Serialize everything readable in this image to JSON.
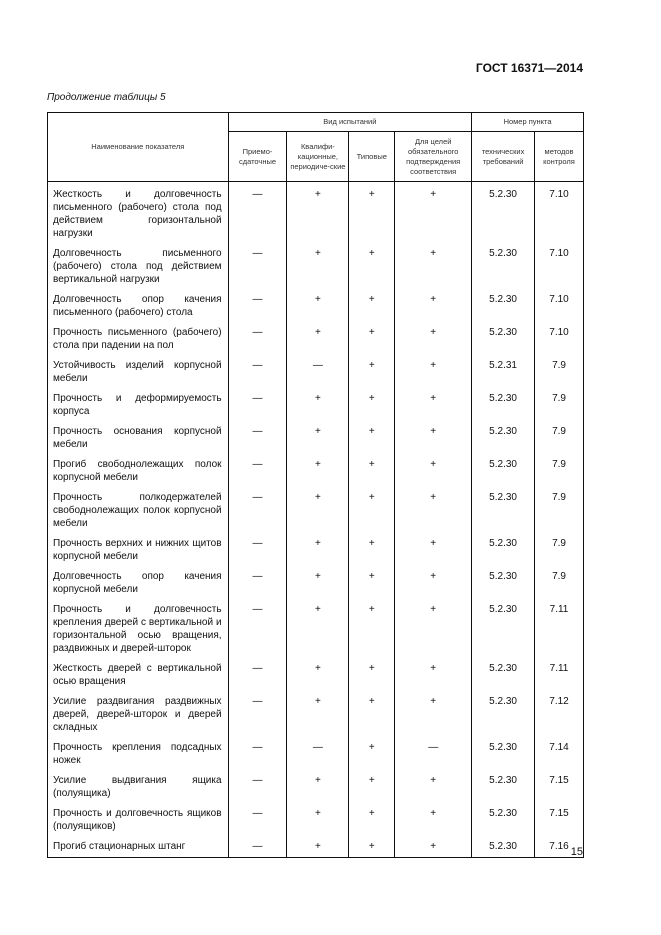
{
  "header": {
    "doc_code": "ГОСТ 16371—2014"
  },
  "caption": "Продолжение таблицы 5",
  "table": {
    "col_name": "Наименование показателя",
    "group_tests": "Вид испытаний",
    "group_clause": "Номер пункта",
    "cols": [
      "Приемо-сдаточные",
      "Квалифи-кационные, периодиче-ские",
      "Типовые",
      "Для целей обязательного подтверждения соответствия",
      "технических требований",
      "методов контроля"
    ],
    "rows": [
      [
        "Жесткость и долговечность письменного (рабочего) стола под действием горизонтальной нагрузки",
        "—",
        "+",
        "+",
        "+",
        "5.2.30",
        "7.10"
      ],
      [
        "Долговечность письменного (рабочего) стола под действием вертикальной нагрузки",
        "—",
        "+",
        "+",
        "+",
        "5.2.30",
        "7.10"
      ],
      [
        "Долговечность опор качения письменного (рабочего) стола",
        "—",
        "+",
        "+",
        "+",
        "5.2.30",
        "7.10"
      ],
      [
        "Прочность письменного (рабочего) стола при падении на пол",
        "—",
        "+",
        "+",
        "+",
        "5.2.30",
        "7.10"
      ],
      [
        "Устойчивость изделий корпусной мебели",
        "—",
        "—",
        "+",
        "+",
        "5.2.31",
        "7.9"
      ],
      [
        "Прочность и деформируемость корпуса",
        "—",
        "+",
        "+",
        "+",
        "5.2.30",
        "7.9"
      ],
      [
        "Прочность основания корпусной мебели",
        "—",
        "+",
        "+",
        "+",
        "5.2.30",
        "7.9"
      ],
      [
        "Прогиб свободнолежащих полок корпусной мебели",
        "—",
        "+",
        "+",
        "+",
        "5.2.30",
        "7.9"
      ],
      [
        "Прочность полкодержателей свободнолежащих полок корпусной мебели",
        "—",
        "+",
        "+",
        "+",
        "5.2.30",
        "7.9"
      ],
      [
        "Прочность верхних и нижних щитов корпусной мебели",
        "—",
        "+",
        "+",
        "+",
        "5.2.30",
        "7.9"
      ],
      [
        "Долговечность опор качения корпусной мебели",
        "—",
        "+",
        "+",
        "+",
        "5.2.30",
        "7.9"
      ],
      [
        "Прочность и долговечность крепления дверей с вертикальной и горизонтальной осью вращения, раздвижных и дверей-шторок",
        "—",
        "+",
        "+",
        "+",
        "5.2.30",
        "7.11"
      ],
      [
        "Жесткость дверей с вертикальной осью вращения",
        "—",
        "+",
        "+",
        "+",
        "5.2.30",
        "7.11"
      ],
      [
        "Усилие раздвигания раздвижных дверей, дверей-шторок и дверей складных",
        "—",
        "+",
        "+",
        "+",
        "5.2.30",
        "7.12"
      ],
      [
        "Прочность крепления подсадных ножек",
        "—",
        "—",
        "+",
        "—",
        "5.2.30",
        "7.14"
      ],
      [
        "Усилие выдвигания ящика (полуящика)",
        "—",
        "+",
        "+",
        "+",
        "5.2.30",
        "7.15"
      ],
      [
        "Прочность и долговечность ящиков (полуящиков)",
        "—",
        "+",
        "+",
        "+",
        "5.2.30",
        "7.15"
      ],
      [
        "Прогиб стационарных штанг",
        "—",
        "+",
        "+",
        "+",
        "5.2.30",
        "7.16"
      ]
    ]
  },
  "page_number": "15"
}
